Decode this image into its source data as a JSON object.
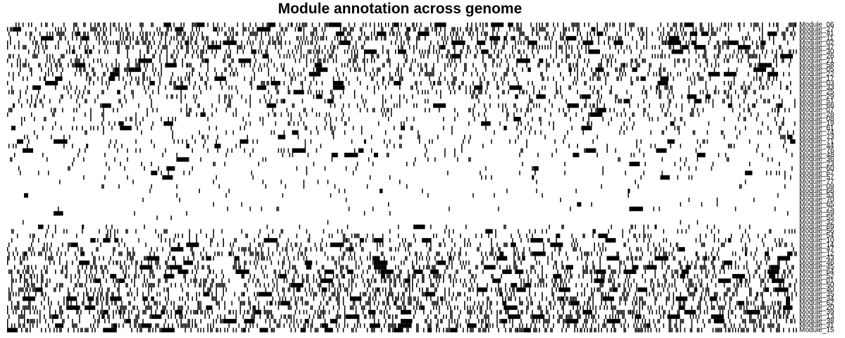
{
  "chart_data": {
    "type": "heatmap",
    "title": "Module annotation across genome",
    "xlabel": "",
    "ylabel": "",
    "colors": {
      "present": "#000000",
      "absent": "#ffffff"
    },
    "value_encoding": "1 = module annotated at genomic position (black tick), 0 = absent (white)",
    "row_labels": [
      "Module_06",
      "Module_27",
      "Module_41",
      "Module_11",
      "Module_02",
      "Module_37",
      "Module_30",
      "Module_26",
      "Module_21",
      "Module_58",
      "Module_05",
      "Module_22",
      "Module_17",
      "Module_03",
      "Module_33",
      "Module_25",
      "Module_29",
      "Module_51",
      "Module_66",
      "Module_07",
      "Module_28",
      "Module_08",
      "Module_19",
      "Module_61",
      "Module_74",
      "Module_73",
      "Module_71",
      "Module_44",
      "Module_76",
      "Module_48",
      "Module_36",
      "Module_23",
      "Module_60",
      "Module_67",
      "Module_57",
      "Module_77",
      "Module_09",
      "Module_68",
      "Module_53",
      "Module_70",
      "Module_65",
      "Module_75",
      "Module_59",
      "Module_55",
      "Module_32",
      "Module_69",
      "Module_56",
      "Module_54",
      "Module_10",
      "Module_14",
      "Module_47",
      "Module_12",
      "Module_43",
      "Module_46",
      "Module_45",
      "Module_64",
      "Module_52",
      "Module_01",
      "Module_50",
      "Module_40",
      "Module_35",
      "Module_34",
      "Module_62",
      "Module_20",
      "Module_39",
      "Module_13",
      "Module_38",
      "Module_31",
      "Module_15"
    ],
    "row_density": [
      0.34,
      0.32,
      0.3,
      0.29,
      0.28,
      0.27,
      0.26,
      0.25,
      0.24,
      0.23,
      0.22,
      0.21,
      0.2,
      0.19,
      0.18,
      0.17,
      0.16,
      0.15,
      0.14,
      0.13,
      0.12,
      0.11,
      0.1,
      0.09,
      0.085,
      0.08,
      0.075,
      0.07,
      0.065,
      0.06,
      0.055,
      0.05,
      0.045,
      0.04,
      0.035,
      0.03,
      0.03,
      0.025,
      0.02,
      0.02,
      0.015,
      0.015,
      0.01,
      0.01,
      0.01,
      0.05,
      0.1,
      0.13,
      0.16,
      0.18,
      0.2,
      0.22,
      0.24,
      0.25,
      0.26,
      0.27,
      0.28,
      0.29,
      0.3,
      0.3,
      0.31,
      0.31,
      0.32,
      0.32,
      0.33,
      0.33,
      0.34,
      0.34,
      0.35
    ],
    "positions_per_row": 560
  }
}
